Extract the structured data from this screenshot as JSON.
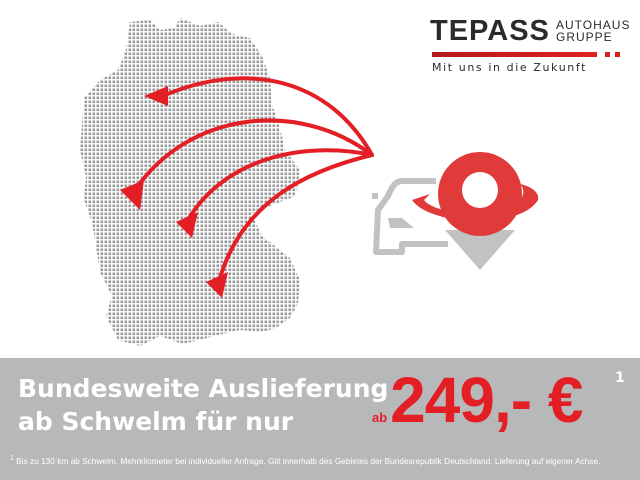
{
  "logo": {
    "brand": "TEPASS",
    "sub_line1": "AUTOHAUS",
    "sub_line2": "GRUPPE",
    "tagline": "Mit uns in die Zukunft"
  },
  "headline": {
    "line1": "Bundesweite Auslieferung",
    "line2": "ab Schwelm für nur"
  },
  "price": {
    "prefix": "ab",
    "amount": "249,- €",
    "footnote_marker": "1"
  },
  "footnote": {
    "marker": "1",
    "text": "Bis zu 130 km ab Schwelm. Mehrkilometer bei individueller Anfrage. Gilt innerhalb des Gebietes der Bundesrepublik Deutschland. Lieferung auf eigener Achse."
  },
  "icons": [
    "germany-map",
    "delivery-arrows",
    "car-icon",
    "location-pin-icon"
  ],
  "colors": {
    "accent": "#e31e24",
    "band": "#b7b8ba",
    "map_dots": "#9a9a9a",
    "icon_gray": "#c0c0c0"
  }
}
